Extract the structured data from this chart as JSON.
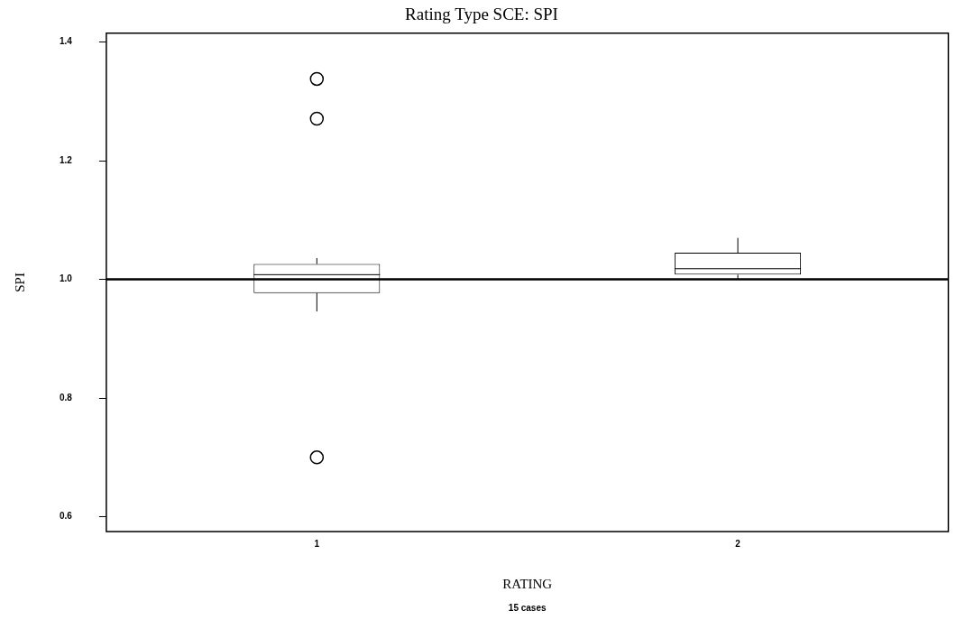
{
  "chart_data": {
    "type": "box",
    "title": "Rating Type SCE: SPI",
    "xlabel": "RATING",
    "ylabel": "SPI",
    "categories": [
      "1",
      "2"
    ],
    "boxes": [
      {
        "low": 0.946,
        "q1": 0.977,
        "median": 1.008,
        "q3": 1.026,
        "high": 1.036,
        "outliers": [
          1.338,
          1.271,
          0.7
        ]
      },
      {
        "low": 1.0,
        "q1": 1.008,
        "median": 1.018,
        "q3": 1.045,
        "high": 1.07
      }
    ],
    "ylim": [
      0.575,
      1.415
    ],
    "yticks": [
      {
        "value": 0.6,
        "label": "0.6"
      },
      {
        "value": 0.8,
        "label": "0.8"
      },
      {
        "value": 1.0,
        "label": "1.0"
      },
      {
        "value": 1.2,
        "label": "1.2"
      },
      {
        "value": 1.4,
        "label": "1.4"
      }
    ],
    "ref_lines": [
      {
        "axis": "y",
        "value": 1.0,
        "color": "#000000"
      }
    ],
    "grid": false,
    "legend": false,
    "annotations": [
      "15 cases"
    ]
  }
}
